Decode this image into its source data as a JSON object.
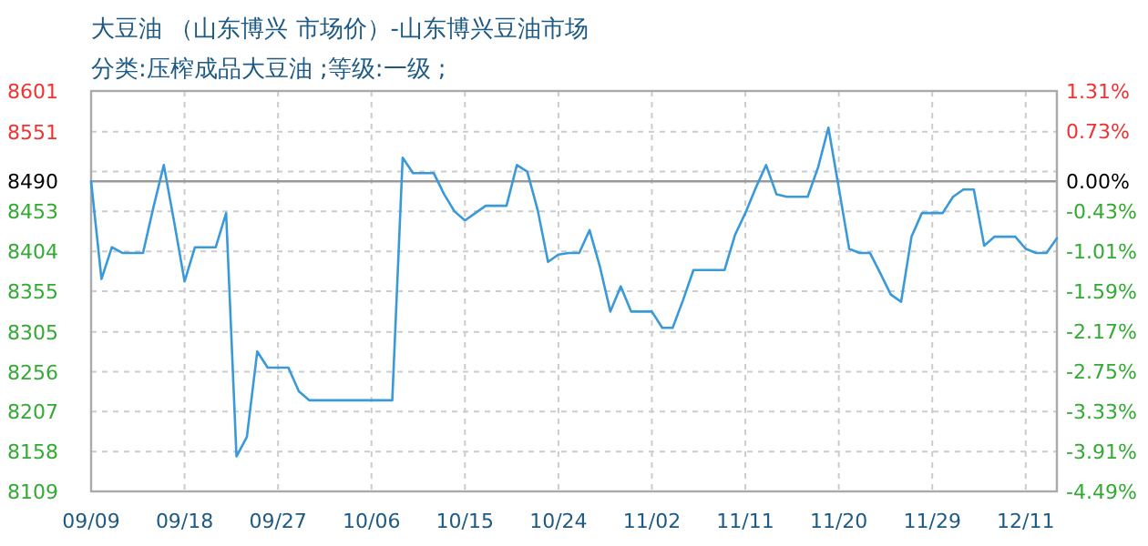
{
  "chart_data": {
    "type": "line",
    "title": "大豆油 （山东博兴 市场价）-山东博兴豆油市场",
    "subtitle": "分类:压榨成品大豆油 ;等级:一级 ;",
    "categories": [
      "09/09",
      null,
      null,
      null,
      null,
      null,
      null,
      null,
      null,
      "09/18",
      null,
      null,
      null,
      null,
      null,
      null,
      null,
      null,
      "09/27",
      null,
      null,
      null,
      null,
      null,
      null,
      null,
      null,
      "10/06",
      null,
      null,
      null,
      null,
      null,
      null,
      null,
      null,
      "10/15",
      null,
      null,
      null,
      null,
      null,
      null,
      null,
      null,
      "10/24",
      null,
      null,
      null,
      null,
      null,
      null,
      null,
      null,
      "11/02",
      null,
      null,
      null,
      null,
      null,
      null,
      null,
      null,
      "11/11",
      null,
      null,
      null,
      null,
      null,
      null,
      null,
      null,
      "11/20",
      null,
      null,
      null,
      null,
      null,
      null,
      null,
      null,
      "11/29",
      null,
      null,
      null,
      null,
      null,
      null,
      null,
      null,
      "12/11",
      null,
      null,
      null
    ],
    "series": [
      {
        "color": "#3a9ad9",
        "values": [
          8490,
          8370,
          8409,
          8402,
          8402,
          8402,
          8458,
          8510,
          8440,
          8367,
          8409,
          8409,
          8409,
          8451,
          8152,
          8176,
          8281,
          8261,
          8261,
          8261,
          8232,
          8221,
          8221,
          8221,
          8221,
          8221,
          8221,
          8221,
          8221,
          8221,
          8519,
          8500,
          8500,
          8500,
          8474,
          8453,
          8442,
          8451,
          8460,
          8460,
          8460,
          8510,
          8502,
          8455,
          8391,
          8400,
          8402,
          8402,
          8430,
          8385,
          8330,
          8361,
          8330,
          8330,
          8330,
          8310,
          8310,
          8344,
          8381,
          8381,
          8381,
          8381,
          8424,
          8451,
          8482,
          8510,
          8474,
          8471,
          8471,
          8471,
          8507,
          8556,
          8482,
          8407,
          8402,
          8402,
          8377,
          8351,
          8342,
          8422,
          8451,
          8451,
          8451,
          8471,
          8480,
          8480,
          8411,
          8422,
          8422,
          8422,
          8407,
          8402,
          8402,
          8420
        ]
      }
    ],
    "ylim": [
      8109,
      8601
    ],
    "yticks": [
      8601,
      8551,
      {
        "value": 8502,
        "label": null
      },
      8453,
      8404,
      8355,
      8305,
      8256,
      8207,
      8158,
      8109
    ],
    "y2lim": [
      -4.49,
      1.31
    ],
    "y2ticks": [
      {
        "value": 1.31,
        "label": "1.31%"
      },
      {
        "value": 0.73,
        "label": "0.73%"
      },
      {
        "value": 0,
        "label": "0.00%"
      },
      {
        "value": -0.43,
        "label": "-0.43%"
      },
      {
        "value": -1.01,
        "label": "-1.01%"
      },
      {
        "value": -1.59,
        "label": "-1.59%"
      },
      {
        "value": -2.17,
        "label": "-2.17%"
      },
      {
        "value": -2.75,
        "label": "-2.75%"
      },
      {
        "value": -3.33,
        "label": "-3.33%"
      },
      {
        "value": -3.91,
        "label": "-3.91%"
      },
      {
        "value": -4.49,
        "label": "-4.49%"
      }
    ],
    "ref_lines": [
      {
        "axis": "y",
        "value": 8490,
        "label": "8490",
        "color": "#999999",
        "line_style": "solid"
      }
    ],
    "grid": true,
    "marker": "none",
    "line_style": "solid"
  }
}
